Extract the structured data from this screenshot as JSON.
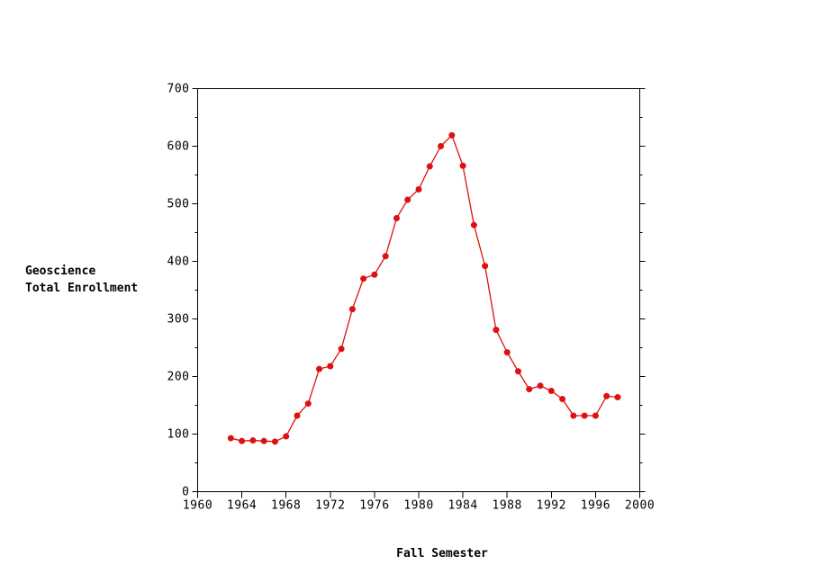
{
  "labels": {
    "y_axis_title_line1": "Geoscience",
    "y_axis_title_line2": "Total Enrollment",
    "x_axis_title": "Fall Semester"
  },
  "colors": {
    "background": "#ffffff",
    "axis": "#000000",
    "series": "#dd1111"
  },
  "chart_data": {
    "type": "line",
    "title": "",
    "xlabel": "Fall Semester",
    "ylabel": "Geoscience Total Enrollment",
    "x": [
      1963,
      1964,
      1965,
      1966,
      1967,
      1968,
      1969,
      1970,
      1971,
      1972,
      1973,
      1974,
      1975,
      1976,
      1977,
      1978,
      1979,
      1980,
      1981,
      1982,
      1983,
      1984,
      1985,
      1986,
      1987,
      1988,
      1989,
      1990,
      1991,
      1992,
      1993,
      1994,
      1995,
      1996,
      1997,
      1998
    ],
    "y": [
      93,
      88,
      89,
      88,
      87,
      96,
      132,
      153,
      213,
      218,
      248,
      317,
      370,
      377,
      409,
      475,
      507,
      525,
      565,
      600,
      619,
      566,
      463,
      392,
      281,
      242,
      209,
      178,
      184,
      175,
      161,
      132,
      132,
      132,
      166,
      164
    ],
    "series_name": "Geoscience Total Enrollment",
    "xlim": [
      1960,
      2000
    ],
    "ylim": [
      0,
      700
    ],
    "x_ticks": [
      1960,
      1964,
      1968,
      1972,
      1976,
      1980,
      1984,
      1988,
      1992,
      1996,
      2000
    ],
    "y_ticks": [
      0,
      100,
      200,
      300,
      400,
      500,
      600,
      700
    ],
    "y_minor_ticks": [
      50,
      150,
      250,
      350,
      450,
      550,
      650
    ],
    "grid": false,
    "legend_position": "none",
    "frame": "box",
    "marker": "circle",
    "marker_size": 7,
    "line_color": "#dd1111",
    "marker_color": "#dd1111"
  }
}
